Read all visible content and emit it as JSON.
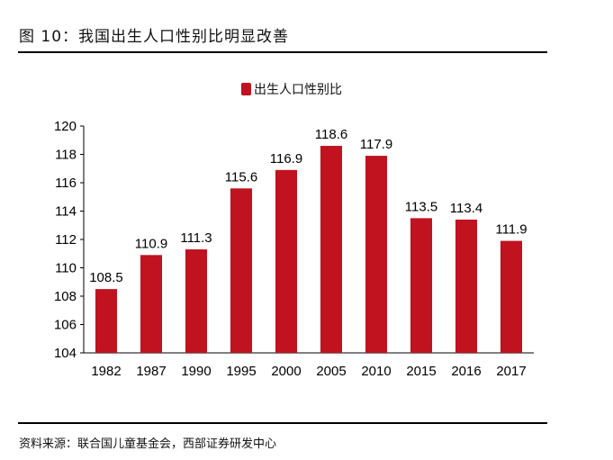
{
  "title": "图 10：我国出生人口性别比明显改善",
  "source": "资料来源：联合国儿童基金会，西部证券研发中心",
  "chart_data": {
    "type": "bar",
    "categories": [
      "1982",
      "1987",
      "1990",
      "1995",
      "2000",
      "2005",
      "2010",
      "2015",
      "2016",
      "2017"
    ],
    "series": [
      {
        "name": "出生人口性别比",
        "values": [
          108.5,
          110.9,
          111.3,
          115.6,
          116.9,
          118.6,
          117.9,
          113.5,
          113.4,
          111.9
        ],
        "color": "#c0121f"
      }
    ],
    "ylim": [
      104,
      120
    ],
    "yticks": [
      104,
      106,
      108,
      110,
      112,
      114,
      116,
      118,
      120
    ],
    "legend": "top-center",
    "grid": false,
    "data_labels": true
  }
}
